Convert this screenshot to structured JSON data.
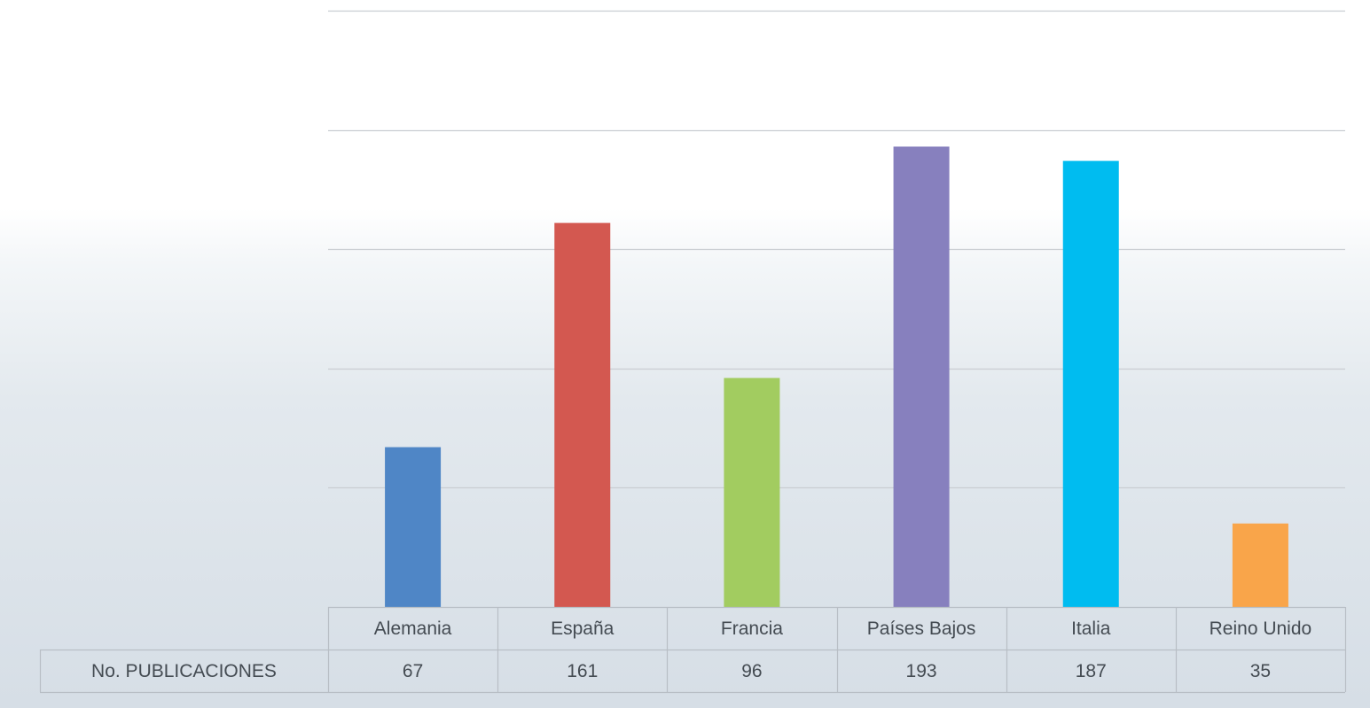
{
  "chart_data": {
    "type": "bar",
    "title": "",
    "xlabel": "",
    "ylabel": "",
    "ylim": [
      0,
      250
    ],
    "grid": true,
    "legend": "data-table",
    "categories": [
      "Alemania",
      "España",
      "Francia",
      "Países Bajos",
      "Italia",
      "Reino Unido"
    ],
    "series": [
      {
        "name": "No. PUBLICACIONES",
        "values": [
          67,
          161,
          96,
          193,
          187,
          35
        ],
        "colors": [
          "#4f86c6",
          "#d35850",
          "#a2cc60",
          "#8780be",
          "#00bcf0",
          "#f9a54a"
        ]
      }
    ]
  }
}
